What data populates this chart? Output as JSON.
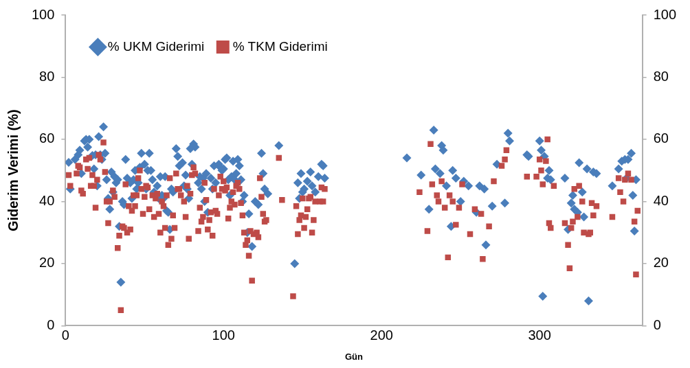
{
  "chart_data": {
    "type": "scatter",
    "xlabel": "Gün",
    "ylabel": "Giderim Verimi (%)",
    "xlim": [
      0,
      365
    ],
    "xticks": [
      0,
      100,
      200,
      300
    ],
    "ylim": [
      0,
      100
    ],
    "yticks": [
      0,
      20,
      40,
      60,
      80,
      100
    ],
    "y2lim": [
      0,
      100
    ],
    "y2ticks": [
      0,
      20,
      40,
      60,
      80,
      100
    ],
    "grid": false,
    "legend": "top left",
    "series": [
      {
        "name": "% UKM Giderimi",
        "color": "#4a7ebb",
        "marker": "diamond",
        "x": [
          2,
          3,
          6,
          8,
          9,
          10,
          12,
          13,
          14,
          15,
          17,
          18,
          19,
          20,
          21,
          22,
          23,
          24,
          25,
          26,
          27,
          28,
          29,
          30,
          31,
          32,
          33,
          34,
          35,
          36,
          37,
          38,
          39,
          41,
          42,
          43,
          44,
          45,
          46,
          47,
          48,
          50,
          51,
          52,
          53,
          54,
          55,
          56,
          58,
          59,
          60,
          61,
          62,
          63,
          64,
          65,
          66,
          67,
          68,
          70,
          71,
          72,
          74,
          75,
          76,
          77,
          78,
          79,
          80,
          81,
          82,
          84,
          85,
          86,
          87,
          88,
          89,
          90,
          92,
          93,
          94,
          95,
          97,
          98,
          99,
          100,
          101,
          102,
          103,
          104,
          105,
          106,
          107,
          108,
          109,
          110,
          111,
          112,
          113,
          115,
          116,
          118,
          120,
          122,
          124,
          125,
          126,
          128,
          135,
          145,
          147,
          148,
          149,
          150,
          151,
          153,
          155,
          156,
          158,
          160,
          162,
          163,
          164,
          216,
          225,
          230,
          233,
          234,
          237,
          238,
          239,
          241,
          244,
          245,
          247,
          250,
          252,
          255,
          260,
          262,
          265,
          266,
          270,
          273,
          278,
          280,
          281,
          292,
          293,
          300,
          301,
          302,
          303,
          305,
          306,
          307,
          316,
          318,
          320,
          321,
          322,
          324,
          325,
          327,
          328,
          330,
          331,
          334,
          336,
          346,
          350,
          352,
          354,
          355,
          356,
          358,
          359,
          360,
          361
        ],
        "values": [
          52.6,
          44,
          53.5,
          55,
          56.5,
          49,
          59.5,
          60,
          57.5,
          60,
          54.8,
          50.5,
          55,
          45,
          60.9,
          55,
          53.5,
          64,
          55.5,
          47,
          41,
          37.5,
          49.5,
          43,
          48,
          46,
          47,
          32,
          14,
          40,
          39,
          53.5,
          47.5,
          46,
          41,
          47,
          50,
          44,
          46,
          51,
          55.5,
          52,
          44,
          50,
          55.5,
          50,
          47,
          43,
          45,
          41,
          48,
          42,
          41,
          48,
          37,
          36.5,
          31,
          44,
          43,
          57,
          54.5,
          51.5,
          52.5,
          45,
          48.5,
          44,
          41,
          57,
          52,
          58.5,
          57.5,
          46,
          48,
          44,
          47.5,
          40,
          49,
          36.5,
          47.5,
          44,
          51.5,
          46,
          52,
          51,
          50,
          50.5,
          53.5,
          54,
          47,
          42,
          48,
          53,
          47,
          49,
          53.5,
          51.5,
          47,
          40,
          42,
          30,
          36,
          25.5,
          40,
          39,
          55.5,
          49,
          44,
          42.5,
          58,
          20,
          46,
          41,
          49,
          43,
          44,
          46.5,
          49.5,
          45,
          43,
          48,
          52,
          51.5,
          47.5,
          54,
          48.5,
          37.5,
          63,
          50.5,
          49,
          58,
          56.5,
          45,
          32,
          50,
          47.5,
          40,
          46.5,
          45,
          36.5,
          45,
          44,
          26,
          38.5,
          52,
          39.5,
          62,
          59.5,
          55,
          54.5,
          59.5,
          56.5,
          9.5,
          54.5,
          47.5,
          50,
          47,
          47.5,
          31,
          39.5,
          42,
          37.5,
          36.5,
          52.5,
          43,
          35,
          50.5,
          8,
          49.5,
          49,
          45,
          50.5,
          53,
          53.5,
          47.5,
          53.5,
          55.5,
          42,
          30.5,
          47
        ]
      },
      {
        "name": "% TKM Giderimi",
        "color": "#be4b48",
        "marker": "square",
        "x": [
          2,
          3,
          7,
          8,
          9,
          10,
          11,
          13,
          14,
          15,
          16,
          17,
          18,
          19,
          20,
          21,
          22,
          24,
          25,
          26,
          27,
          28,
          30,
          31,
          33,
          34,
          35,
          36,
          37,
          38,
          39,
          40,
          41,
          42,
          43,
          44,
          45,
          46,
          47,
          48,
          49,
          50,
          51,
          52,
          53,
          55,
          56,
          57,
          58,
          59,
          60,
          61,
          62,
          63,
          64,
          65,
          66,
          67,
          68,
          69,
          70,
          71,
          72,
          73,
          75,
          76,
          77,
          78,
          79,
          80,
          81,
          82,
          84,
          85,
          86,
          87,
          88,
          89,
          90,
          91,
          92,
          93,
          94,
          95,
          96,
          97,
          98,
          99,
          100,
          101,
          102,
          103,
          104,
          105,
          106,
          107,
          108,
          109,
          110,
          111,
          112,
          113,
          114,
          115,
          116,
          117,
          118,
          119,
          121,
          122,
          123,
          124,
          125,
          126,
          127,
          135,
          137,
          144,
          146,
          147,
          148,
          149,
          150,
          151,
          152,
          153,
          154,
          155,
          156,
          157,
          158,
          161,
          162,
          163,
          164,
          224,
          229,
          231,
          232,
          235,
          236,
          238,
          240,
          242,
          243,
          245,
          247,
          249,
          251,
          256,
          259,
          263,
          264,
          268,
          271,
          276,
          278,
          279,
          292,
          298,
          300,
          301,
          302,
          304,
          305,
          306,
          307,
          309,
          316,
          318,
          319,
          320,
          321,
          322,
          324,
          325,
          327,
          328,
          331,
          332,
          333,
          334,
          336,
          346,
          350,
          351,
          353,
          354,
          356,
          358,
          360,
          361,
          362
        ],
        "values": [
          48.5,
          45,
          49,
          51.5,
          51,
          43.5,
          42.5,
          53.5,
          50.5,
          54,
          45,
          48.5,
          45,
          38,
          47,
          55,
          53.5,
          59,
          49.5,
          40,
          33,
          40,
          43.5,
          41.5,
          25,
          29,
          5,
          32,
          31.5,
          45.5,
          30,
          38.5,
          31,
          37,
          42,
          38.5,
          42,
          47.5,
          50,
          44,
          36,
          41.5,
          45,
          44.5,
          37.5,
          42,
          35,
          41,
          42.5,
          36,
          30,
          40,
          38.5,
          31.5,
          42,
          26,
          47.5,
          28,
          35.5,
          31.5,
          49,
          44,
          44,
          42,
          40,
          35,
          45,
          28,
          42.5,
          48.5,
          51,
          49,
          30.5,
          38,
          33.5,
          35,
          46,
          40.5,
          31,
          34,
          36.5,
          29,
          44,
          37,
          36,
          42,
          48,
          44,
          46.5,
          43.5,
          44.5,
          34.5,
          38,
          40,
          43,
          39,
          45,
          46,
          44,
          39.5,
          35.5,
          30,
          26,
          27.5,
          22.5,
          30.5,
          14.5,
          29.5,
          30,
          28.5,
          47.5,
          41.5,
          36,
          33.5,
          34,
          54,
          40.5,
          9.5,
          38.5,
          29.5,
          34,
          35.5,
          41,
          31.5,
          35,
          37.5,
          41,
          41.5,
          30,
          34,
          40,
          40,
          44.5,
          40,
          44,
          43,
          30.5,
          58.5,
          45.5,
          42,
          40,
          46.5,
          38,
          22,
          42,
          40,
          32.5,
          38,
          45.5,
          29.5,
          37.5,
          36,
          21.5,
          32,
          46.5,
          51.5,
          53.5,
          56.5,
          48,
          48,
          53.5,
          50,
          45.5,
          53,
          60,
          33,
          31.5,
          45,
          33,
          26,
          18.5,
          31.5,
          33.5,
          44,
          35,
          45,
          40,
          30,
          29.5,
          30,
          39.5,
          35.5,
          38.5,
          35,
          47.5,
          43,
          40,
          47,
          49,
          47,
          33.5,
          16.5,
          37
        ]
      }
    ]
  }
}
